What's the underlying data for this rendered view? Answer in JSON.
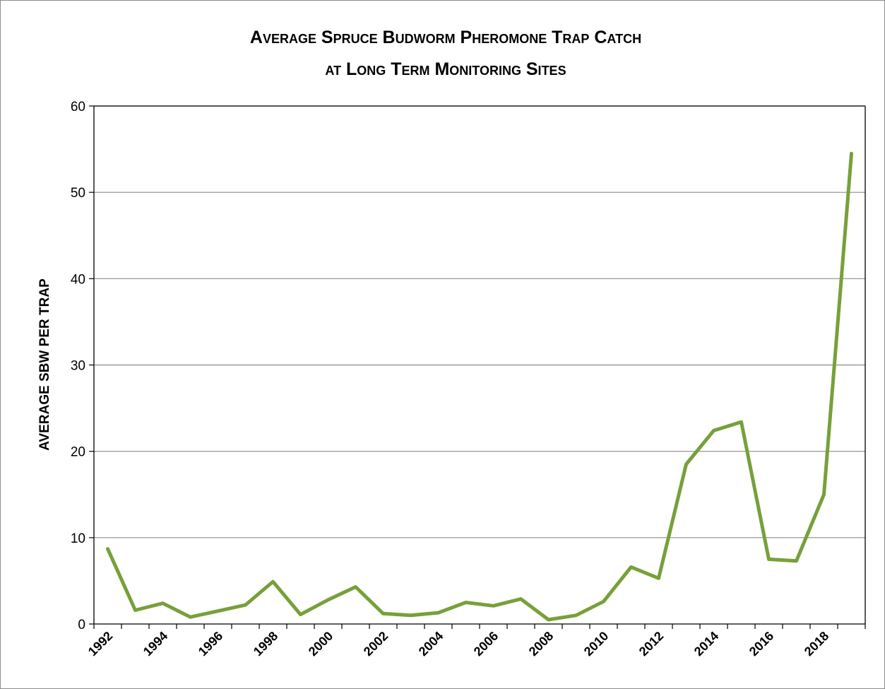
{
  "chart_data": {
    "type": "line",
    "title_line1": "Average Spruce Budworm Pheromone Trap Catch",
    "title_line2": "at Long Term Monitoring Sites",
    "xlabel": "",
    "ylabel": "AVERAGE SBW PER TRAP",
    "ylim": [
      0,
      60
    ],
    "yticks": [
      0,
      10,
      20,
      30,
      40,
      50,
      60
    ],
    "xtick_labels": [
      "1992",
      "1994",
      "1996",
      "1998",
      "2000",
      "2002",
      "2004",
      "2006",
      "2008",
      "2010",
      "2012",
      "2014",
      "2016",
      "2018"
    ],
    "grid": true,
    "legend": "none",
    "line_color": "#77a03a",
    "x": [
      1992,
      1993,
      1994,
      1995,
      1996,
      1997,
      1998,
      1999,
      2000,
      2001,
      2002,
      2003,
      2004,
      2005,
      2006,
      2007,
      2008,
      2009,
      2010,
      2011,
      2012,
      2013,
      2014,
      2015,
      2016,
      2017,
      2018,
      2019
    ],
    "series": [
      {
        "values": [
          8.7,
          1.6,
          2.4,
          0.8,
          1.5,
          2.2,
          4.9,
          1.1,
          2.8,
          4.3,
          1.2,
          1.0,
          1.3,
          2.5,
          2.1,
          2.9,
          0.5,
          1.0,
          2.6,
          6.6,
          5.3,
          18.5,
          22.4,
          23.4,
          7.5,
          7.3,
          15.0,
          54.5
        ]
      }
    ]
  }
}
